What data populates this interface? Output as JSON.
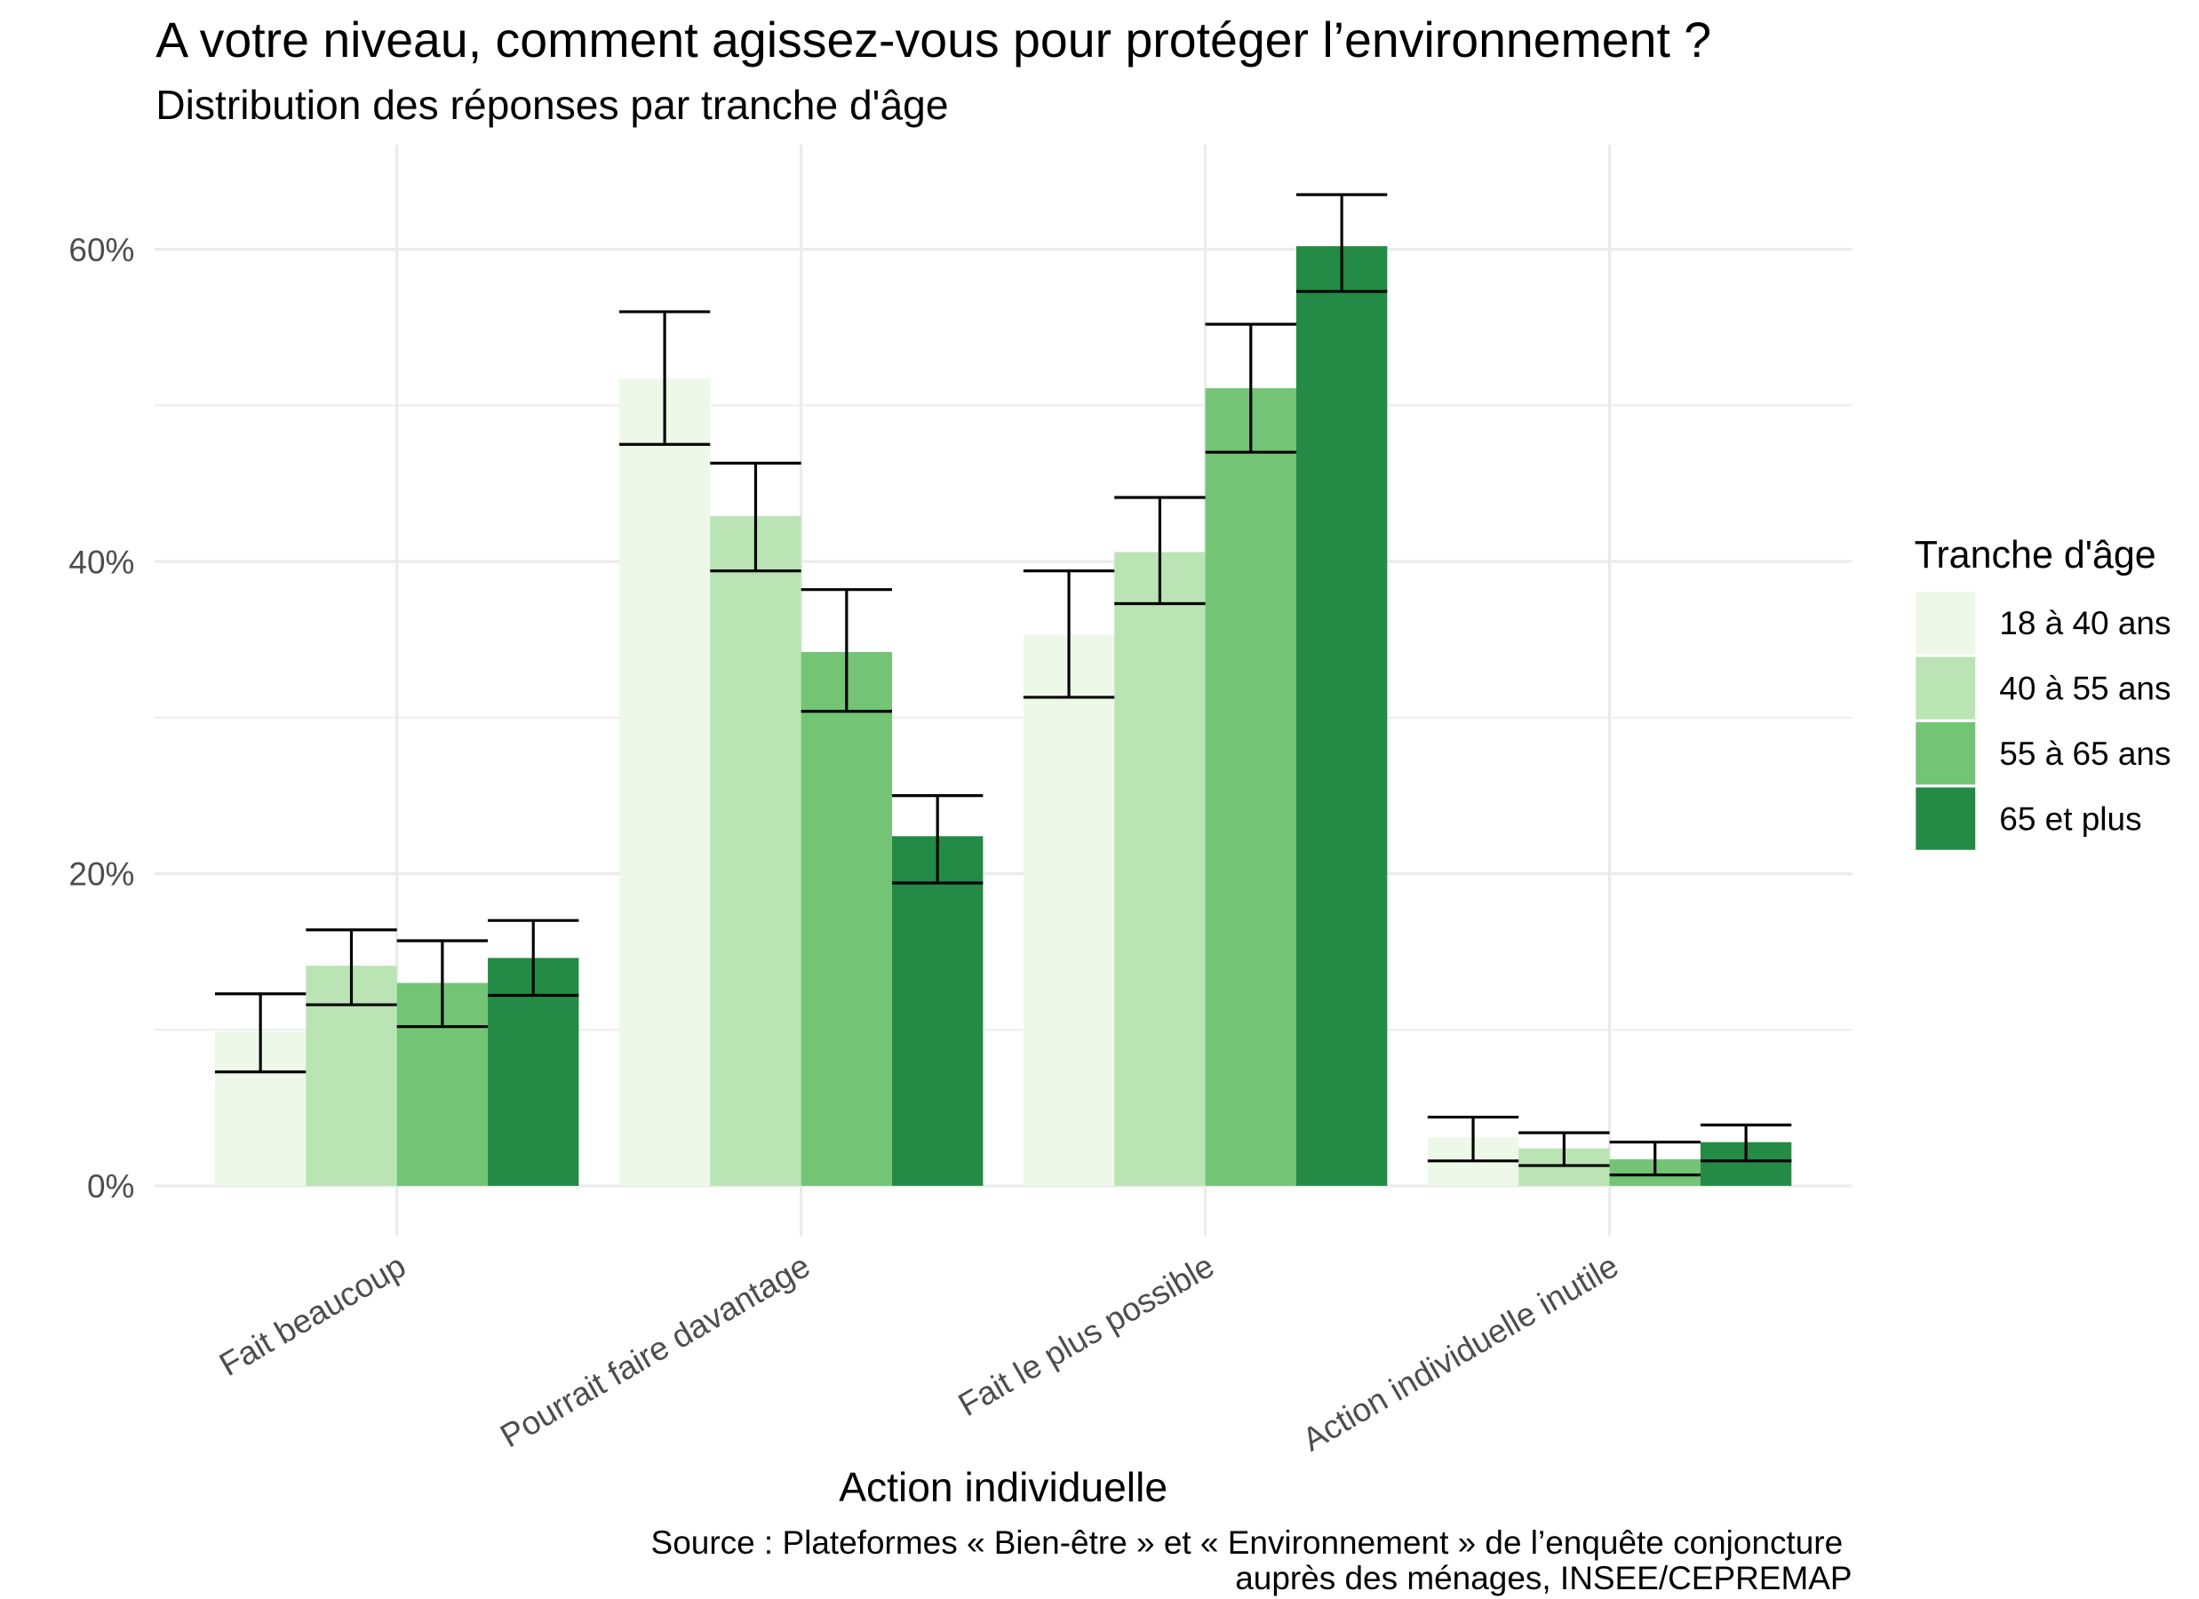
{
  "chart_data": {
    "type": "bar",
    "title": "A votre niveau, comment agissez-vous pour protéger l’environnement ?",
    "subtitle": "Distribution des réponses par tranche d'âge",
    "xlabel": "Action individuelle",
    "caption": [
      "Source : Plateformes « Bien-être » et « Environnement » de l’enquête conjoncture",
      "auprès des ménages, INSEE/CEPREMAP"
    ],
    "categories": [
      "Fait beaucoup",
      "Pourrait faire davantage",
      "Fait le plus possible",
      "Action individuelle inutile"
    ],
    "ylim": [
      -3.2,
      66.7
    ],
    "y_ticks": [
      0,
      20,
      40,
      60
    ],
    "y_tick_labels": [
      "0%",
      "20%",
      "40%",
      "60%"
    ],
    "y_minor_ticks": [
      10,
      30,
      50
    ],
    "grid": true,
    "legend_title": "Tranche d'âge",
    "legend_position": "right",
    "series": [
      {
        "name": "18 à 40 ans",
        "color": "#EDF8E9",
        "values": [
          9.9,
          51.7,
          35.3,
          3.1
        ],
        "error_low": [
          7.3,
          47.5,
          31.3,
          1.6
        ],
        "error_high": [
          12.3,
          56.0,
          39.4,
          4.4
        ]
      },
      {
        "name": "40 à 55 ans",
        "color": "#BAE4B3",
        "values": [
          14.1,
          42.9,
          40.6,
          2.4
        ],
        "error_low": [
          11.6,
          39.4,
          37.3,
          1.3
        ],
        "error_high": [
          16.4,
          46.3,
          44.1,
          3.4
        ]
      },
      {
        "name": "55 à 65 ans",
        "color": "#74C476",
        "values": [
          13.0,
          34.2,
          51.1,
          1.7
        ],
        "error_low": [
          10.2,
          30.4,
          47.0,
          0.7
        ],
        "error_high": [
          15.7,
          38.2,
          55.2,
          2.8
        ]
      },
      {
        "name": "65 et plus",
        "color": "#238B45",
        "values": [
          14.6,
          22.4,
          60.2,
          2.8
        ],
        "error_low": [
          12.2,
          19.4,
          57.3,
          1.6
        ],
        "error_high": [
          17.0,
          25.0,
          63.5,
          3.9
        ]
      }
    ]
  }
}
